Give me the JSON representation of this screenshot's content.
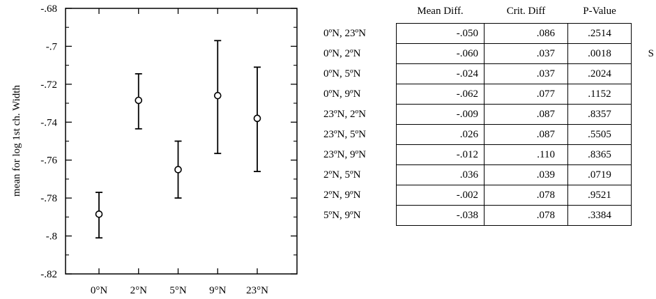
{
  "chart_data": [
    {
      "type": "errorbar",
      "ylabel": "mean for log 1st ch. Width",
      "xlabel": "",
      "title": "",
      "categories": [
        "0°N",
        "2°N",
        "5°N",
        "9°N",
        "23°N"
      ],
      "means": [
        -0.7885,
        -0.7285,
        -0.765,
        -0.726,
        -0.738
      ],
      "lower": [
        -0.801,
        -0.7435,
        -0.78,
        -0.7565,
        -0.766
      ],
      "upper": [
        -0.777,
        -0.7145,
        -0.75,
        -0.697,
        -0.711
      ],
      "ylim": [
        -0.82,
        -0.68
      ],
      "yticks": [
        -0.82,
        -0.8,
        -0.78,
        -0.76,
        -0.74,
        -0.72,
        -0.7,
        -0.68
      ],
      "ytick_labels": [
        "-.82",
        "-.8",
        "-.78",
        "-.76",
        "-.74",
        "-.72",
        "-.7",
        "-.68"
      ],
      "grid": false
    },
    {
      "type": "table",
      "columns": [
        "Mean Diff.",
        "Crit. Diff",
        "P-Value"
      ],
      "rows": [
        {
          "label": "0ºN, 23ºN",
          "values": [
            "-.050",
            ".086",
            ".2514"
          ],
          "flag": ""
        },
        {
          "label": "0ºN, 2ºN",
          "values": [
            "-.060",
            ".037",
            ".0018"
          ],
          "flag": "S"
        },
        {
          "label": "0ºN, 5ºN",
          "values": [
            "-.024",
            ".037",
            ".2024"
          ],
          "flag": ""
        },
        {
          "label": "0ºN, 9ºN",
          "values": [
            "-.062",
            ".077",
            ".1152"
          ],
          "flag": ""
        },
        {
          "label": "23ºN, 2ºN",
          "values": [
            "-.009",
            ".087",
            ".8357"
          ],
          "flag": ""
        },
        {
          "label": "23ºN, 5ºN",
          "values": [
            ".026",
            ".087",
            ".5505"
          ],
          "flag": ""
        },
        {
          "label": "23ºN, 9ºN",
          "values": [
            "-.012",
            ".110",
            ".8365"
          ],
          "flag": ""
        },
        {
          "label": "2ºN, 5ºN",
          "values": [
            ".036",
            ".039",
            ".0719"
          ],
          "flag": ""
        },
        {
          "label": "2ºN, 9ºN",
          "values": [
            "-.002",
            ".078",
            ".9521"
          ],
          "flag": ""
        },
        {
          "label": "5ºN, 9ºN",
          "values": [
            "-.038",
            ".078",
            ".3384"
          ],
          "flag": ""
        }
      ]
    }
  ]
}
